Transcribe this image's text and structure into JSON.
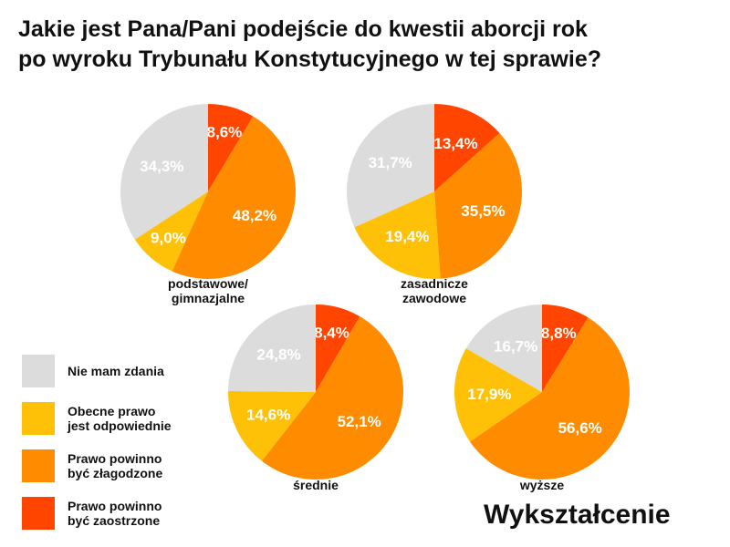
{
  "title_lines": [
    "Jakie jest Pana/Pani podejście do kwestii aborcji rok",
    "po wyroku Trybunału Konstytucyjnego w tej sprawie?"
  ],
  "footer_label": "Wykształcenie",
  "colors": {
    "Nie mam zdania": "#dcdcdc",
    "Obecne prawo jest odpowiednie": "#ffc107",
    "Prawo powinno być złagodzone": "#ff8c00",
    "Prawo powinno być zaostrzone": "#ff4500"
  },
  "legend": [
    {
      "line1": "Nie mam zdania",
      "line2": "",
      "color": "#dcdcdc"
    },
    {
      "line1": "Obecne prawo",
      "line2": "jest odpowiednie",
      "color": "#ffc107"
    },
    {
      "line1": "Prawo powinno",
      "line2": "być złagodzone",
      "color": "#ff8c00"
    },
    {
      "line1": "Prawo powinno",
      "line2": "być zaostrzone",
      "color": "#ff4500"
    }
  ],
  "chart_data": [
    {
      "type": "pie",
      "caption_lines": [
        "podstawowe/",
        "gimnazjalne"
      ],
      "labels": [
        "Prawo powinno być zaostrzone",
        "Prawo powinno być złagodzone",
        "Obecne prawo jest odpowiednie",
        "Nie mam zdania"
      ],
      "values": [
        8.6,
        48.2,
        9.0,
        34.3
      ],
      "value_labels": [
        "8,6%",
        "48,2%",
        "9,0%",
        "34,3%"
      ]
    },
    {
      "type": "pie",
      "caption_lines": [
        "zasadnicze",
        "zawodowe"
      ],
      "labels": [
        "Prawo powinno być zaostrzone",
        "Prawo powinno być złagodzone",
        "Obecne prawo jest odpowiednie",
        "Nie mam zdania"
      ],
      "values": [
        13.4,
        35.5,
        19.4,
        31.7
      ],
      "value_labels": [
        "13,4%",
        "35,5%",
        "19,4%",
        "31,7%"
      ]
    },
    {
      "type": "pie",
      "caption_lines": [
        "średnie"
      ],
      "labels": [
        "Prawo powinno być zaostrzone",
        "Prawo powinno być złagodzone",
        "Obecne prawo jest odpowiednie",
        "Nie mam zdania"
      ],
      "values": [
        8.4,
        52.1,
        14.6,
        24.8
      ],
      "value_labels": [
        "8,4%",
        "52,1%",
        "14,6%",
        "24,8%"
      ]
    },
    {
      "type": "pie",
      "caption_lines": [
        "wyższe"
      ],
      "labels": [
        "Prawo powinno być zaostrzone",
        "Prawo powinno być złagodzone",
        "Obecne prawo jest odpowiednie",
        "Nie mam zdania"
      ],
      "values": [
        8.8,
        56.6,
        17.9,
        16.7
      ],
      "value_labels": [
        "8,8%",
        "56,6%",
        "17,9%",
        "16,7%"
      ]
    }
  ]
}
